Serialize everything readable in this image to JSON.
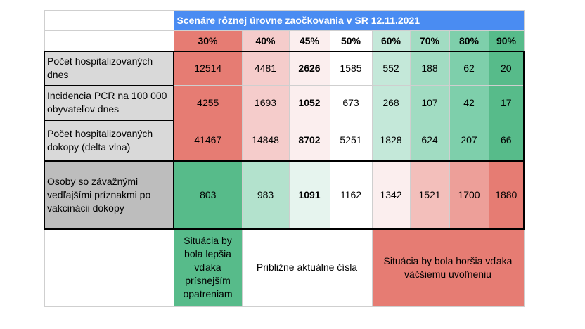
{
  "title": "Scenáre rôznej úrovne zaočkovania v SR 12.11.2021",
  "columns": [
    "30%",
    "40%",
    "45%",
    "50%",
    "60%",
    "70%",
    "80%",
    "90%"
  ],
  "column_colors": [
    "#e67c73",
    "#f5cccb",
    "#fbeeee",
    "#ffffff",
    "#c4e8d9",
    "#a1dcc2",
    "#7ecfab",
    "#57bb8a"
  ],
  "rows": [
    {
      "label": "Počet hospitalizovaných dnes",
      "values": [
        "12514",
        "4481",
        "2626",
        "1585",
        "552",
        "188",
        "62",
        "20"
      ],
      "colors": [
        "#e67c73",
        "#f5cccb",
        "#fbeeee",
        "#ffffff",
        "#c4e8d9",
        "#a1dcc2",
        "#7ecfab",
        "#57bb8a"
      ]
    },
    {
      "label": "Incidencia PCR na 100 000 obyvateľov dnes",
      "values": [
        "4255",
        "1693",
        "1052",
        "673",
        "268",
        "107",
        "42",
        "17"
      ],
      "colors": [
        "#e67c73",
        "#f5cccb",
        "#fbeeee",
        "#ffffff",
        "#c4e8d9",
        "#a1dcc2",
        "#7ecfab",
        "#57bb8a"
      ]
    },
    {
      "label": "Počet hospitalizovaných dokopy (delta vlna)",
      "values": [
        "41467",
        "14848",
        "8702",
        "5251",
        "1828",
        "624",
        "207",
        "66"
      ],
      "colors": [
        "#e67c73",
        "#f5cccb",
        "#fbeeee",
        "#ffffff",
        "#c4e8d9",
        "#a1dcc2",
        "#7ecfab",
        "#57bb8a"
      ]
    },
    {
      "label": "Osoby so závažnými vedľajšími príznakmi po vakcinácii dokopy",
      "values": [
        "803",
        "983",
        "1091",
        "1162",
        "1342",
        "1521",
        "1700",
        "1880"
      ],
      "colors": [
        "#57bb8a",
        "#b3e2cd",
        "#e6f4ee",
        "#ffffff",
        "#fbeeee",
        "#f3bfbb",
        "#ed9f99",
        "#e67c73"
      ]
    }
  ],
  "footer": {
    "better": "Situácia by bola lepšia vďaka prísnejším opatreniam",
    "current": "Približne aktuálne čísla",
    "worse": "Situácia by bola horšia vďaka väčšiemu uvoľneniu",
    "better_color": "#57bb8a",
    "worse_color": "#e67c73"
  },
  "label_bg": "#d9d9d9",
  "last_label_bg": "#bdbdbd"
}
